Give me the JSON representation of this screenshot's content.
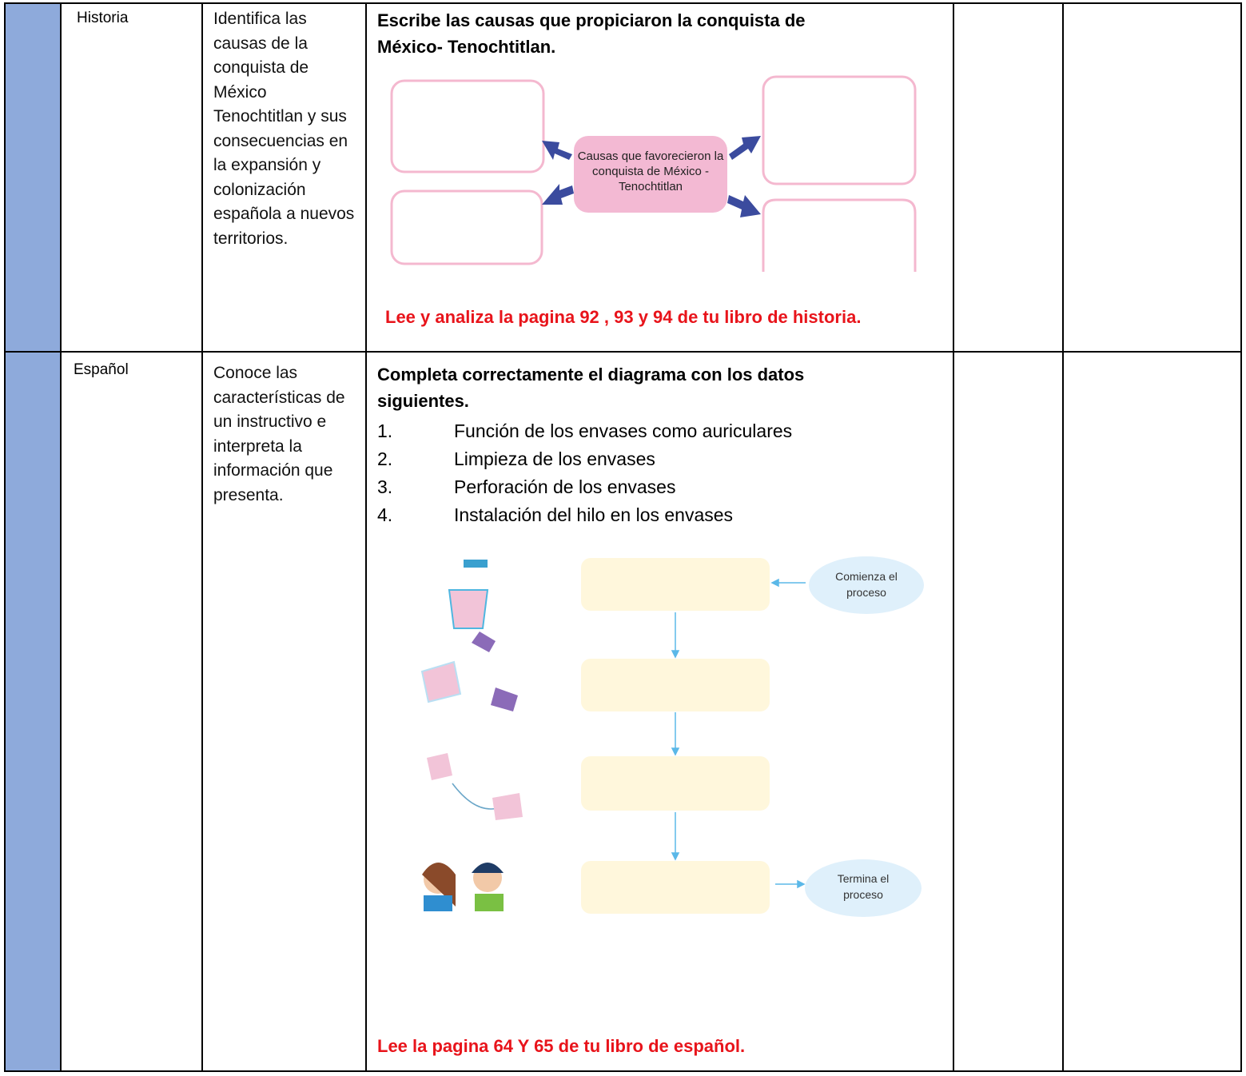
{
  "table": {
    "rows": [
      {
        "subject": "Historia",
        "objective": "Identifica las causas de la conquista de México Tenochtitlan y sus consecuencias en la expansión y colonización española a nuevos territorios.",
        "activity": {
          "title": "Escribe las causas que propiciaron la conquista de México- Tenochtitlan.",
          "diagram_center": "Causas que favorecieron la conquista de México - Tenochtitlan",
          "note": "Lee y analiza la pagina 92 , 93 y 94 de tu libro de historia."
        }
      },
      {
        "subject": "Español",
        "objective": "Conoce las características de un instructivo e interpreta la información que presenta.",
        "activity": {
          "title": "Completa correctamente el diagrama con los datos siguientes.",
          "items": [
            {
              "number": "1.",
              "text": "Función de los envases como auriculares"
            },
            {
              "number": "2.",
              "text": "Limpieza de los envases"
            },
            {
              "number": "3.",
              "text": "Perforación de los envases"
            },
            {
              "number": "4.",
              "text": "Instalación del hilo en los envases"
            }
          ],
          "start": "Comienza el proceso",
          "end": "Termina el proceso",
          "note": "Lee la pagina 64 Y 65 de tu libro de español."
        }
      }
    ]
  }
}
